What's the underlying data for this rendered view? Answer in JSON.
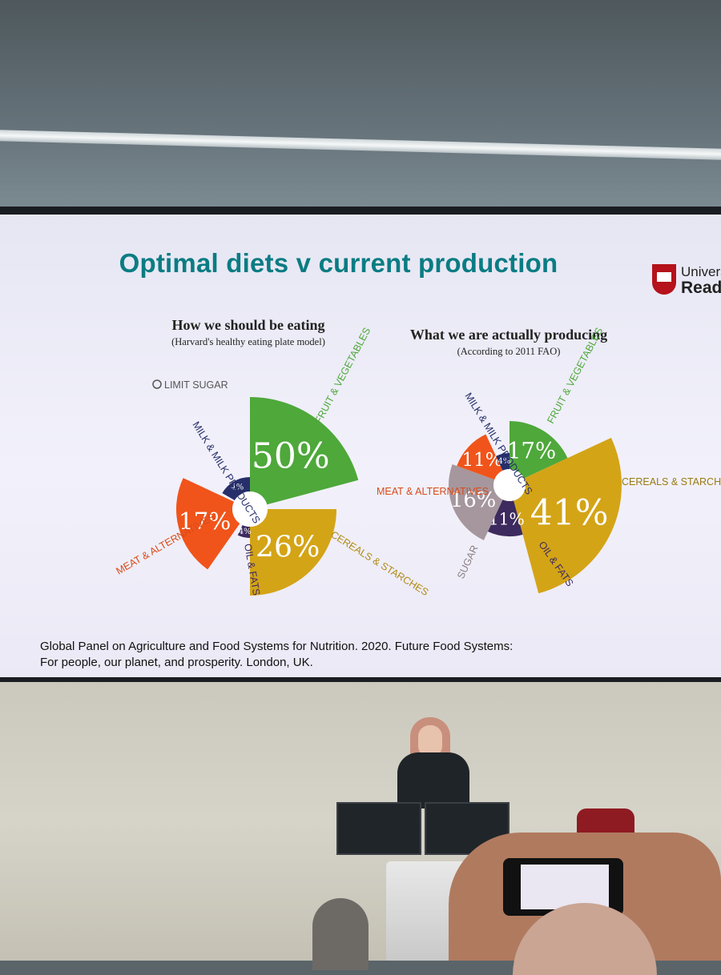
{
  "slide": {
    "title": "Optimal diets v current production",
    "logo_line1": "Univers",
    "logo_line2": "Read",
    "left_heading": "How we should be eating",
    "left_subheading": "(Harvard's healthy eating plate model)",
    "right_heading": "What we are actually producing",
    "right_subheading": "(According to 2011 FAO)",
    "limit_sugar": "LIMIT SUGAR",
    "citation_line1": "Global Panel on Agriculture and Food Systems for Nutrition. 2020. Future Food Systems:",
    "citation_line2": "For people, our planet, and prosperity. London, UK."
  },
  "colors": {
    "fruit_veg": "#4ea83a",
    "cereals": "#d4a417",
    "oils": "#3d2a5e",
    "meat": "#f0541a",
    "milk": "#262f6a",
    "sugar": "#a5979d",
    "title": "#0a7c83"
  },
  "chart_data": [
    {
      "type": "pie",
      "title": "How we should be eating",
      "subtitle": "(Harvard's healthy eating plate model)",
      "slices": [
        {
          "label": "FRUIT & VEGETABLES",
          "value": 50,
          "display": "50%"
        },
        {
          "label": "CEREALS & STARCHES",
          "value": 26,
          "display": "26%"
        },
        {
          "label": "OIL & FATS",
          "value": 4,
          "display": "4%"
        },
        {
          "label": "MEAT & ALTERNATIVES",
          "value": 17,
          "display": "17%"
        },
        {
          "label": "MILK & MILK PRODUCTS",
          "value": 4,
          "display": "4%"
        }
      ],
      "annotation": "LIMIT SUGAR"
    },
    {
      "type": "pie",
      "title": "What we are actually producing",
      "subtitle": "(According to 2011 FAO)",
      "slices": [
        {
          "label": "FRUIT & VEGETABLES",
          "value": 17,
          "display": "17%"
        },
        {
          "label": "CEREALS & STARCHES",
          "value": 41,
          "display": "41%"
        },
        {
          "label": "OIL & FATS",
          "value": 11,
          "display": "11%"
        },
        {
          "label": "SUGAR",
          "value": 16,
          "display": "16%"
        },
        {
          "label": "MEAT & ALTERNATIVES",
          "value": 11,
          "display": "11%"
        },
        {
          "label": "MILK & MILK PRODUCTS",
          "value": 4,
          "display": "4%"
        }
      ]
    }
  ]
}
